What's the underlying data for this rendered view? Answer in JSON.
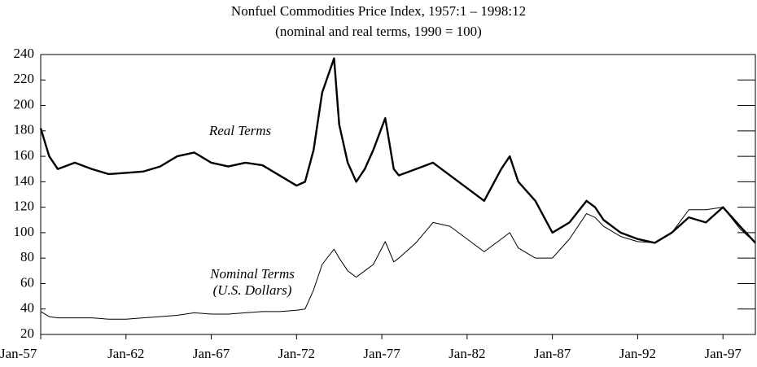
{
  "chart_data": {
    "type": "line",
    "title": "Nonfuel Commodities Price Index, 1957:1 – 1998:12",
    "subtitle": "(nominal and real terms, 1990 = 100)",
    "x": [
      1957,
      1957.5,
      1958,
      1959,
      1960,
      1961,
      1962,
      1963,
      1964,
      1965,
      1966,
      1967,
      1968,
      1969,
      1970,
      1971,
      1972,
      1972.5,
      1973,
      1973.5,
      1974.2,
      1974.5,
      1975,
      1975.5,
      1976,
      1976.5,
      1977.2,
      1977.7,
      1978,
      1979,
      1980,
      1981,
      1982,
      1983,
      1984,
      1984.5,
      1985,
      1986,
      1987,
      1988,
      1989,
      1989.5,
      1990,
      1991,
      1992,
      1993,
      1994,
      1995,
      1996,
      1997,
      1998,
      1998.9
    ],
    "series": [
      {
        "name": "Real Terms",
        "color": "#000000",
        "width": 2.4,
        "values": [
          182,
          160,
          150,
          155,
          150,
          146,
          147,
          148,
          152,
          160,
          163,
          155,
          152,
          155,
          153,
          145,
          137,
          140,
          165,
          210,
          237,
          185,
          155,
          140,
          150,
          165,
          190,
          150,
          145,
          150,
          155,
          145,
          135,
          125,
          150,
          160,
          140,
          125,
          100,
          108,
          125,
          120,
          110,
          100,
          95,
          92,
          100,
          112,
          108,
          120,
          105,
          92
        ]
      },
      {
        "name": "Nominal Terms",
        "color": "#000000",
        "width": 1,
        "values": [
          38,
          34,
          33,
          33,
          33,
          32,
          32,
          33,
          34,
          35,
          37,
          36,
          36,
          37,
          38,
          38,
          39,
          40,
          55,
          75,
          87,
          80,
          70,
          65,
          70,
          75,
          93,
          77,
          80,
          92,
          108,
          105,
          95,
          85,
          95,
          100,
          88,
          80,
          80,
          95,
          115,
          112,
          105,
          97,
          93,
          92,
          100,
          118,
          118,
          120,
          103,
          92
        ]
      }
    ],
    "annotations": [
      "(U.S. Dollars)"
    ],
    "xlim": [
      1957,
      1998.9
    ],
    "xticks": [
      {
        "value": 1957,
        "label": "Jan-57"
      },
      {
        "value": 1962,
        "label": "Jan-62"
      },
      {
        "value": 1967,
        "label": "Jan-67"
      },
      {
        "value": 1972,
        "label": "Jan-72"
      },
      {
        "value": 1977,
        "label": "Jan-77"
      },
      {
        "value": 1982,
        "label": "Jan-82"
      },
      {
        "value": 1987,
        "label": "Jan-87"
      },
      {
        "value": 1992,
        "label": "Jan-92"
      },
      {
        "value": 1997,
        "label": "Jan-97"
      }
    ],
    "ylim": [
      20,
      240
    ],
    "yticks": [
      20,
      40,
      60,
      80,
      100,
      120,
      140,
      160,
      180,
      200,
      220,
      240
    ],
    "grid": false
  }
}
